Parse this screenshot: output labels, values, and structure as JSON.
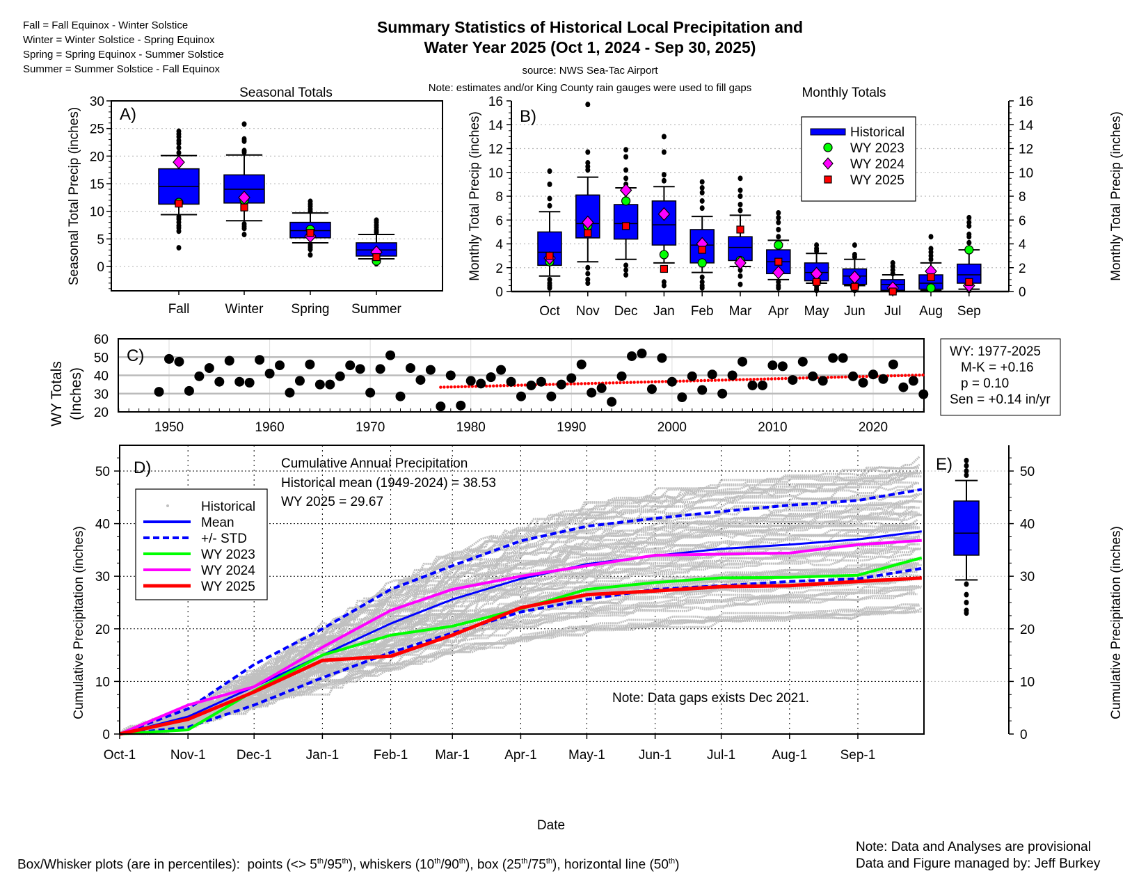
{
  "header": {
    "season_defs": [
      "Fall = Fall Equinox - Winter Solstice",
      "Winter = Winter Solstice - Spring Equinox",
      "Spring = Spring Equinox - Summer Solstice",
      "Summer = Summer Solstice - Fall Equinox"
    ],
    "title_line1": "Summary Statistics of Historical Local Precipitation and",
    "title_line2": "Water Year 2025 (Oct 1, 2024 - Sep 30, 2025)",
    "source": "source: NWS Sea-Tac Airport",
    "note": "Note: estimates and/or King County rain gauges were used to fill gaps"
  },
  "colors": {
    "box": "#0000ff",
    "wy2023": "#00ff00",
    "wy2024": "#ff00ff",
    "wy2025": "#ff0000",
    "historical": "#c0c0c0",
    "mean": "#0000ff",
    "trend": "#ff0000"
  },
  "chart_data": [
    {
      "panel": "A)",
      "type": "box",
      "title": "Seasonal Totals",
      "ylabel": "Seasonal Total Precip (inches)",
      "ylim": [
        -4.4,
        30
      ],
      "yticks": [
        0,
        5,
        10,
        15,
        20,
        25,
        30
      ],
      "grid": "horizontal dotted",
      "categories": [
        "Fall",
        "Winter",
        "Spring",
        "Summer"
      ],
      "boxes": [
        {
          "q1": 11.3,
          "median": 14.5,
          "q3": 17.7,
          "p10": 9.4,
          "p90": 20.1,
          "outliers": [
            20.6,
            21.5,
            22.3,
            22.8,
            23.5,
            24.0,
            24.5,
            9.0,
            8.6,
            8.0,
            7.4,
            7.0,
            6.4,
            3.4
          ]
        },
        {
          "q1": 11.5,
          "median": 14.0,
          "q3": 16.6,
          "p10": 8.3,
          "p90": 20.2,
          "outliers": [
            20.7,
            21.0,
            22.7,
            23.1,
            25.8,
            7.7,
            7.3,
            6.9,
            5.8
          ]
        },
        {
          "q1": 5.2,
          "median": 6.5,
          "q3": 8.0,
          "p10": 4.3,
          "p90": 9.7,
          "outliers": [
            10.0,
            10.4,
            10.9,
            11.3,
            11.8,
            3.9,
            3.5,
            3.1,
            2.1
          ]
        },
        {
          "q1": 1.9,
          "median": 3.0,
          "q3": 4.3,
          "p10": 1.4,
          "p90": 5.8,
          "outliers": [
            6.2,
            6.6,
            7.1,
            7.5,
            8.0,
            8.4,
            1.0,
            0.7,
            0.5
          ]
        }
      ],
      "series": [
        {
          "name": "WY 2023",
          "values": [
            11.6,
            12.0,
            6.7,
            1.0
          ]
        },
        {
          "name": "WY 2024",
          "values": [
            18.9,
            12.5,
            5.5,
            2.6
          ]
        },
        {
          "name": "WY 2025",
          "values": [
            11.4,
            10.7,
            6.1,
            1.7
          ]
        }
      ]
    },
    {
      "panel": "B)",
      "type": "box",
      "title": "Monthly Totals",
      "ylabel": "Monthly Total Precip (inches)",
      "ylim": [
        0,
        16
      ],
      "yticks": [
        0,
        2,
        4,
        6,
        8,
        10,
        12,
        14,
        16
      ],
      "grid": "horizontal dotted",
      "legend_position": "top-right",
      "legend": [
        "Historical",
        "WY 2023",
        "WY 2024",
        "WY 2025"
      ],
      "categories": [
        "Oct",
        "Nov",
        "Dec",
        "Jan",
        "Feb",
        "Mar",
        "Apr",
        "May",
        "Jun",
        "Jul",
        "Aug",
        "Sep"
      ],
      "boxes": [
        {
          "q1": 2.2,
          "median": 3.3,
          "q3": 5.0,
          "p10": 1.3,
          "p90": 6.7,
          "outliers": [
            7.2,
            7.8,
            9.0,
            10.1,
            1.0,
            0.7,
            0.5,
            0.3
          ]
        },
        {
          "q1": 4.5,
          "median": 5.7,
          "q3": 8.1,
          "p10": 2.5,
          "p90": 9.6,
          "outliers": [
            10.2,
            10.5,
            10.8,
            11.7,
            15.7,
            2.0,
            1.5,
            1.0,
            0.7
          ]
        },
        {
          "q1": 4.4,
          "median": 5.7,
          "q3": 7.3,
          "p10": 2.7,
          "p90": 8.7,
          "outliers": [
            9.0,
            9.5,
            10.2,
            11.3,
            11.9,
            2.2,
            1.8,
            1.4
          ]
        },
        {
          "q1": 3.9,
          "median": 5.6,
          "q3": 7.6,
          "p10": 2.4,
          "p90": 8.8,
          "outliers": [
            9.3,
            9.8,
            11.7,
            13.0,
            0.8,
            0.5
          ]
        },
        {
          "q1": 2.4,
          "median": 3.9,
          "q3": 5.2,
          "p10": 1.6,
          "p90": 6.3,
          "outliers": [
            7.0,
            7.6,
            8.3,
            8.7,
            9.2,
            1.2,
            0.8,
            0.5,
            0.3
          ]
        },
        {
          "q1": 2.6,
          "median": 3.7,
          "q3": 4.6,
          "p10": 2.1,
          "p90": 6.4,
          "outliers": [
            6.8,
            7.3,
            8.0,
            8.5,
            9.5,
            1.8,
            1.3,
            0.6
          ]
        },
        {
          "q1": 1.5,
          "median": 2.5,
          "q3": 3.5,
          "p10": 1.0,
          "p90": 4.3,
          "outliers": [
            4.6,
            5.2,
            5.8,
            6.2,
            6.6,
            0.8,
            0.5,
            0.3
          ]
        },
        {
          "q1": 0.9,
          "median": 1.6,
          "q3": 2.4,
          "p10": 0.7,
          "p90": 3.2,
          "outliers": [
            3.4,
            3.6,
            3.9,
            0.4,
            0.2,
            0.1
          ]
        },
        {
          "q1": 0.6,
          "median": 1.3,
          "q3": 1.9,
          "p10": 0.5,
          "p90": 2.7,
          "outliers": [
            2.9,
            3.1,
            3.9,
            0.3,
            0.1
          ]
        },
        {
          "q1": 0.1,
          "median": 0.6,
          "q3": 1.0,
          "p10": 0.1,
          "p90": 1.4,
          "outliers": [
            1.5,
            1.8,
            2.1,
            2.4,
            0.05
          ]
        },
        {
          "q1": 0.2,
          "median": 0.7,
          "q3": 1.4,
          "p10": 0.1,
          "p90": 2.4,
          "outliers": [
            2.7,
            3.0,
            3.3,
            3.6,
            4.6
          ]
        },
        {
          "q1": 0.7,
          "median": 1.4,
          "q3": 2.3,
          "p10": 0.2,
          "p90": 3.5,
          "outliers": [
            4.1,
            4.6,
            4.8,
            5.5,
            5.8,
            6.2,
            0.1
          ]
        }
      ],
      "series": [
        {
          "name": "WY 2023",
          "values": [
            2.5,
            5.5,
            7.6,
            3.1,
            2.4,
            2.6,
            3.9,
            0.8,
            0.4,
            0.1,
            0.3,
            3.5
          ]
        },
        {
          "name": "WY 2024",
          "values": [
            2.8,
            5.8,
            8.5,
            6.5,
            4.0,
            2.4,
            1.6,
            1.5,
            1.2,
            0.3,
            1.7,
            0.5
          ]
        },
        {
          "name": "WY 2025",
          "values": [
            3.0,
            4.9,
            5.5,
            1.9,
            3.5,
            5.2,
            2.5,
            0.8,
            0.4,
            0.0,
            1.2,
            0.8
          ]
        }
      ]
    },
    {
      "panel": "C)",
      "type": "scatter",
      "ylabel_line1": "WY Totals",
      "ylabel_line2": "(Inches)",
      "xlim": [
        1945,
        2025
      ],
      "ylim": [
        20,
        60
      ],
      "xticks": [
        1950,
        1960,
        1970,
        1980,
        1990,
        2000,
        2010,
        2020
      ],
      "yticks": [
        20,
        30,
        40,
        50,
        60
      ],
      "x": [
        1949,
        1950,
        1951,
        1952,
        1953,
        1954,
        1955,
        1956,
        1957,
        1958,
        1959,
        1960,
        1961,
        1962,
        1963,
        1964,
        1965,
        1966,
        1967,
        1968,
        1969,
        1970,
        1971,
        1972,
        1973,
        1974,
        1975,
        1976,
        1977,
        1978,
        1979,
        1980,
        1981,
        1982,
        1983,
        1984,
        1985,
        1986,
        1987,
        1988,
        1989,
        1990,
        1991,
        1992,
        1993,
        1994,
        1995,
        1996,
        1997,
        1998,
        1999,
        2000,
        2001,
        2002,
        2003,
        2004,
        2005,
        2006,
        2007,
        2008,
        2009,
        2010,
        2011,
        2012,
        2013,
        2014,
        2015,
        2016,
        2017,
        2018,
        2019,
        2020,
        2021,
        2022,
        2023,
        2024,
        2025
      ],
      "y": [
        31,
        49,
        47.5,
        31.5,
        39.5,
        44,
        36.5,
        48,
        36.5,
        36,
        48.5,
        41,
        45.5,
        30.5,
        37,
        46,
        35,
        35,
        39.5,
        45.5,
        43.5,
        30.5,
        43.5,
        51,
        28.5,
        44,
        37.5,
        43,
        23,
        40,
        23.5,
        37,
        35.5,
        39,
        43,
        36.5,
        28.5,
        34.5,
        36.5,
        28.5,
        35,
        38.5,
        46,
        30.5,
        33,
        25.5,
        39.5,
        50.5,
        52,
        32.5,
        49.5,
        36.5,
        28,
        39.5,
        32,
        40.5,
        30,
        40,
        47.5,
        34.5,
        34.5,
        45.5,
        45,
        37.5,
        47.5,
        39.5,
        37,
        49.5,
        49.5,
        39.5,
        36,
        40.5,
        38,
        46,
        33.5,
        37,
        29.67
      ],
      "trend": {
        "x": [
          1977,
          2025
        ],
        "y": [
          33.5,
          40.2
        ]
      },
      "stats": [
        "WY: 1977-2025",
        "M-K = +0.16",
        "p = 0.10",
        "Sen = +0.14 in/yr"
      ]
    },
    {
      "panel": "D)",
      "type": "line",
      "xlabel": "Date",
      "ylabel": "Cumulative Precipitation (inches)",
      "ylim": [
        0,
        55
      ],
      "yticks": [
        0,
        10,
        20,
        30,
        40,
        50
      ],
      "xticks": [
        "Oct-1",
        "Nov-1",
        "Dec-1",
        "Jan-1",
        "Feb-1",
        "Mar-1",
        "Apr-1",
        "May-1",
        "Jun-1",
        "Jul-1",
        "Aug-1",
        "Sep-1"
      ],
      "xtick_days": [
        0,
        31,
        61,
        92,
        123,
        151,
        182,
        212,
        243,
        273,
        304,
        335
      ],
      "annotations": [
        "Cumulative Annual Precipitation",
        "Historical mean (1949-2024) = 38.53",
        "WY 2025 = 29.67",
        "Note: Data gaps exists Dec 2021."
      ],
      "legend_position": "top-left",
      "legend": [
        "Historical",
        "Mean",
        "+/- STD",
        "WY 2023",
        "WY 2024",
        "WY 2025"
      ],
      "x_days": [
        0,
        31,
        61,
        92,
        123,
        151,
        182,
        212,
        243,
        273,
        304,
        335,
        364
      ],
      "series": [
        {
          "name": "Mean",
          "values": [
            0,
            3.3,
            9.0,
            15.0,
            21.0,
            25.6,
            29.5,
            32.3,
            33.9,
            35.2,
            36.0,
            37.0,
            38.53
          ]
        },
        {
          "name": "+/- STD upper",
          "values": [
            0,
            4.8,
            13.2,
            20.0,
            27.5,
            32.0,
            36.7,
            39.5,
            41.0,
            42.3,
            43.5,
            44.4,
            46.5
          ]
        },
        {
          "name": "+/- STD lower",
          "values": [
            0,
            1.3,
            5.5,
            10.7,
            15.5,
            19.2,
            23.2,
            25.6,
            27.5,
            28.2,
            29.0,
            29.5,
            31.5
          ]
        },
        {
          "name": "WY 2023",
          "values": [
            0,
            0.8,
            8.2,
            15.0,
            18.8,
            20.5,
            23.8,
            27.5,
            28.8,
            29.7,
            29.8,
            30.2,
            33.5
          ]
        },
        {
          "name": "WY 2024",
          "values": [
            0,
            5.5,
            9.0,
            16.5,
            23.5,
            27.5,
            30.0,
            32.0,
            34.0,
            34.2,
            34.4,
            36.0,
            36.8
          ]
        },
        {
          "name": "WY 2025",
          "values": [
            0,
            2.8,
            8.0,
            14.0,
            14.8,
            18.8,
            24.0,
            26.5,
            27.2,
            28.0,
            28.2,
            29.0,
            29.67
          ]
        }
      ]
    },
    {
      "panel": "E)",
      "type": "box",
      "ylabel": "Cumulative Precipitation (inches)",
      "ylim": [
        0,
        55
      ],
      "boxes": [
        {
          "q1": 34.0,
          "median": 38.2,
          "q3": 44.3,
          "p10": 29.3,
          "p90": 48.2,
          "outliers": [
            49.2,
            50.0,
            51.0,
            52.0,
            28.5,
            26.5,
            25.0,
            23.5,
            23.0
          ]
        }
      ]
    }
  ],
  "footer": {
    "box_note": [
      {
        "t": "Box/Whisker plots (are in percentiles):  points (<> 5"
      },
      {
        "t": "th",
        "sup": true
      },
      {
        "t": "/95"
      },
      {
        "t": "th",
        "sup": true
      },
      {
        "t": "), whiskers (10"
      },
      {
        "t": "th",
        "sup": true
      },
      {
        "t": "/90"
      },
      {
        "t": "th",
        "sup": true
      },
      {
        "t": "), box (25"
      },
      {
        "t": "th",
        "sup": true
      },
      {
        "t": "/75"
      },
      {
        "t": "th",
        "sup": true
      },
      {
        "t": "), horizontal line (50"
      },
      {
        "t": "th",
        "sup": true
      },
      {
        "t": ")"
      }
    ],
    "provisional": "Note: Data and Analyses are provisional",
    "managed": "Data and Figure managed by: Jeff Burkey"
  }
}
